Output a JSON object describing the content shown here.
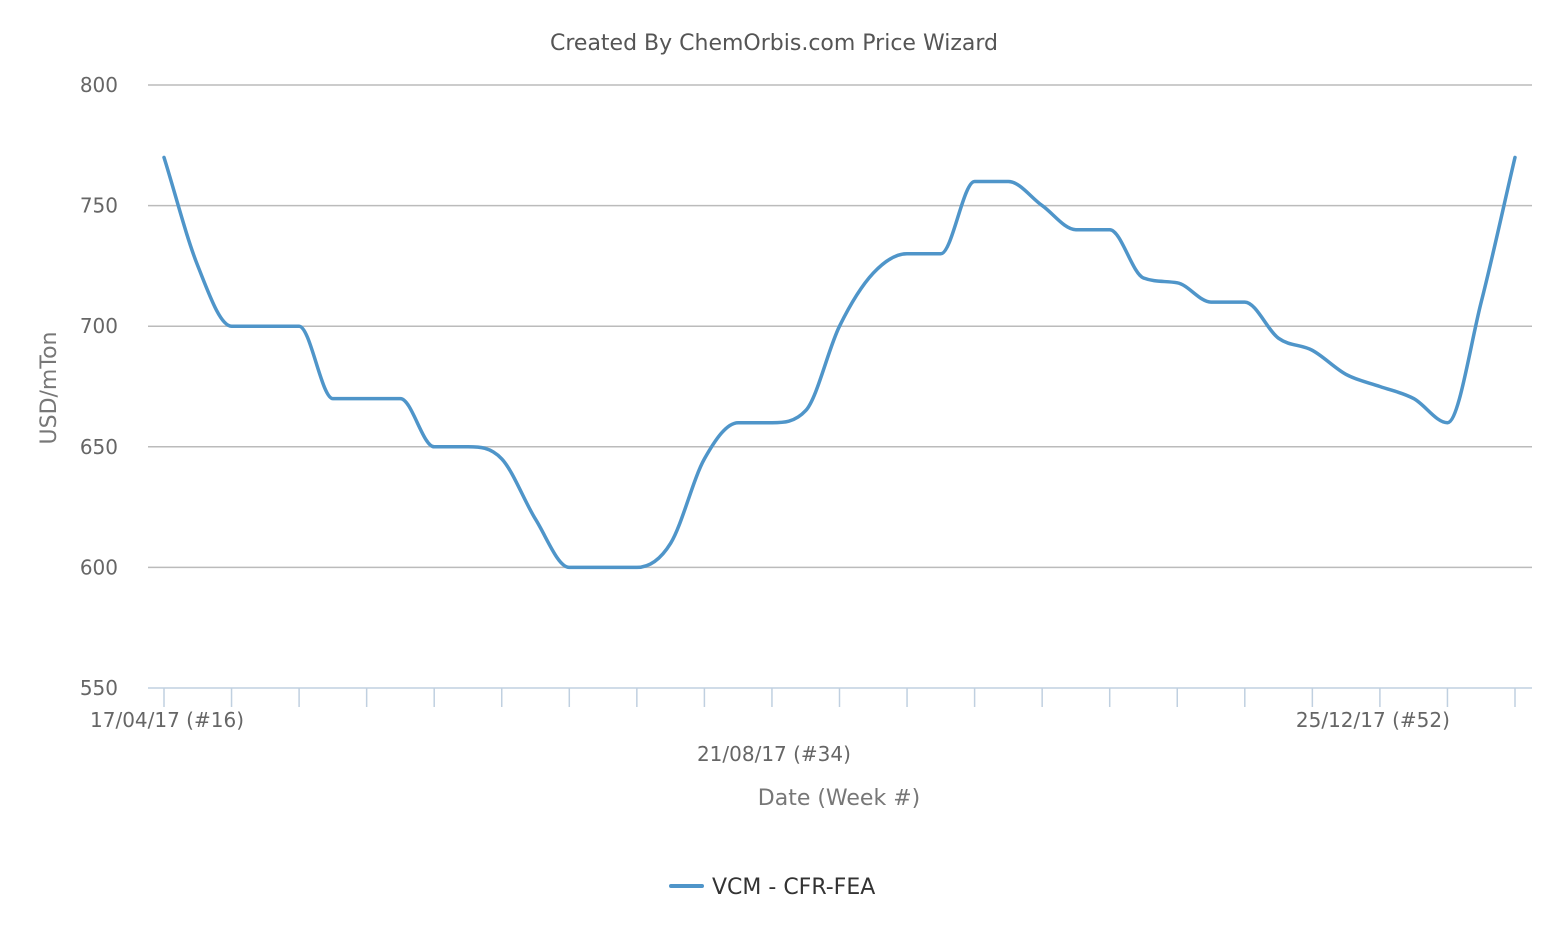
{
  "chart_data": {
    "type": "line",
    "title": "Created By ChemOrbis.com Price Wizard",
    "xlabel": "Date (Week #)",
    "ylabel": "USD/mTon",
    "ylim": [
      550,
      800
    ],
    "yticks": [
      550,
      600,
      650,
      700,
      750,
      800
    ],
    "grid": true,
    "legend_position": "bottom-center",
    "x_tick_labels": [
      {
        "week": 16,
        "label": "17/04/17 (#16)"
      },
      {
        "week": 34,
        "label": "21/08/17 (#34)"
      },
      {
        "week": 52,
        "label": "25/12/17 (#52)"
      }
    ],
    "series": [
      {
        "name": "VCM - CFR-FEA",
        "color": "#4f95c9",
        "x": [
          16,
          17,
          18,
          19,
          20,
          21,
          22,
          23,
          24,
          25,
          26,
          27,
          28,
          29,
          30,
          31,
          32,
          33,
          34,
          35,
          36,
          37,
          38,
          39,
          40,
          41,
          42,
          43,
          44,
          45,
          46,
          47,
          48,
          49,
          50,
          51,
          52,
          53,
          54,
          55,
          56
        ],
        "values": [
          770,
          725,
          700,
          700,
          700,
          670,
          670,
          670,
          650,
          650,
          645,
          620,
          600,
          600,
          600,
          610,
          645,
          660,
          660,
          665,
          700,
          722,
          730,
          730,
          760,
          760,
          750,
          740,
          740,
          720,
          718,
          710,
          710,
          695,
          690,
          680,
          675,
          670,
          660,
          710,
          770
        ]
      }
    ]
  }
}
